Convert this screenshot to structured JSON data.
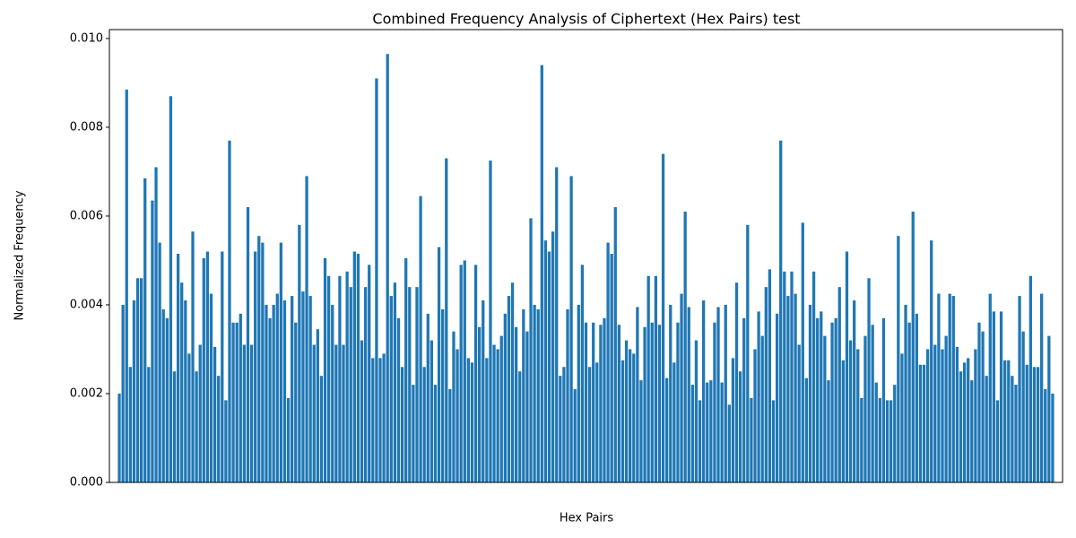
{
  "chart_data": {
    "type": "bar",
    "title": "Combined Frequency Analysis of Ciphertext (Hex Pairs) test",
    "xlabel": "Hex Pairs",
    "ylabel": "Normalized Frequency",
    "color": "#1f77b4",
    "ylim": [
      0,
      0.0102
    ],
    "yticks": [
      {
        "value": 0,
        "label": "0.000"
      },
      {
        "value": 0.002,
        "label": "0.002"
      },
      {
        "value": 0.004,
        "label": "0.004"
      },
      {
        "value": 0.006,
        "label": "0.006"
      },
      {
        "value": 0.008,
        "label": "0.008"
      },
      {
        "value": 0.01,
        "label": "0.010"
      }
    ],
    "grid": false,
    "values": [
      0.002,
      0.004,
      0.00885,
      0.0026,
      0.0041,
      0.0046,
      0.0046,
      0.00685,
      0.0026,
      0.00635,
      0.0071,
      0.0054,
      0.0039,
      0.0037,
      0.0087,
      0.0025,
      0.00515,
      0.0045,
      0.0041,
      0.0029,
      0.00565,
      0.0025,
      0.0031,
      0.00505,
      0.0052,
      0.00425,
      0.00305,
      0.0024,
      0.0052,
      0.00185,
      0.0077,
      0.0036,
      0.0036,
      0.0038,
      0.0031,
      0.0062,
      0.0031,
      0.0052,
      0.00555,
      0.0054,
      0.004,
      0.0037,
      0.004,
      0.00425,
      0.0054,
      0.0041,
      0.0019,
      0.0042,
      0.0036,
      0.0058,
      0.0043,
      0.0069,
      0.0042,
      0.0031,
      0.00345,
      0.0024,
      0.00505,
      0.00465,
      0.004,
      0.0031,
      0.00465,
      0.0031,
      0.00475,
      0.0044,
      0.0052,
      0.00515,
      0.0032,
      0.0044,
      0.0049,
      0.0028,
      0.0091,
      0.0028,
      0.0029,
      0.00965,
      0.0042,
      0.0045,
      0.0037,
      0.0026,
      0.00505,
      0.0044,
      0.0022,
      0.0044,
      0.00645,
      0.0026,
      0.0038,
      0.0032,
      0.0022,
      0.0053,
      0.0039,
      0.0073,
      0.0021,
      0.0034,
      0.003,
      0.0049,
      0.005,
      0.0028,
      0.0027,
      0.0049,
      0.0035,
      0.0041,
      0.0028,
      0.00725,
      0.0031,
      0.003,
      0.0033,
      0.0038,
      0.0042,
      0.0045,
      0.0035,
      0.0025,
      0.0039,
      0.0034,
      0.00595,
      0.004,
      0.0039,
      0.0094,
      0.00545,
      0.0052,
      0.00565,
      0.0071,
      0.0024,
      0.0026,
      0.0039,
      0.0069,
      0.0021,
      0.004,
      0.0049,
      0.0036,
      0.0026,
      0.0036,
      0.0027,
      0.00355,
      0.0037,
      0.0054,
      0.00515,
      0.0062,
      0.00355,
      0.00275,
      0.0032,
      0.003,
      0.0029,
      0.00395,
      0.0023,
      0.0035,
      0.00465,
      0.0036,
      0.00465,
      0.00355,
      0.0074,
      0.00235,
      0.004,
      0.0027,
      0.0036,
      0.00425,
      0.0061,
      0.00395,
      0.0022,
      0.0032,
      0.00185,
      0.0041,
      0.00225,
      0.0023,
      0.0036,
      0.00395,
      0.00225,
      0.004,
      0.00175,
      0.0028,
      0.0045,
      0.0025,
      0.0037,
      0.0058,
      0.0019,
      0.003,
      0.00385,
      0.0033,
      0.0044,
      0.0048,
      0.00185,
      0.0038,
      0.0077,
      0.00475,
      0.0042,
      0.00475,
      0.00425,
      0.0031,
      0.00585,
      0.00235,
      0.004,
      0.00475,
      0.0037,
      0.00385,
      0.0033,
      0.0023,
      0.0036,
      0.0037,
      0.0044,
      0.00275,
      0.0052,
      0.0032,
      0.0041,
      0.003,
      0.0019,
      0.0033,
      0.0046,
      0.00355,
      0.00225,
      0.0019,
      0.0037,
      0.00185,
      0.00185,
      0.0022,
      0.00555,
      0.0029,
      0.004,
      0.0036,
      0.0061,
      0.0038,
      0.00265,
      0.00265,
      0.003,
      0.00545,
      0.0031,
      0.00425,
      0.003,
      0.0033,
      0.00425,
      0.0042,
      0.00305,
      0.0025,
      0.0027,
      0.0028,
      0.0023,
      0.003,
      0.0036,
      0.0034,
      0.0024,
      0.00425,
      0.00385,
      0.00185,
      0.00385,
      0.00275,
      0.00275,
      0.0024,
      0.0022,
      0.0042,
      0.0034,
      0.00265,
      0.00465,
      0.0026,
      0.0026,
      0.00425,
      0.0021,
      0.0033,
      0.002
    ]
  }
}
